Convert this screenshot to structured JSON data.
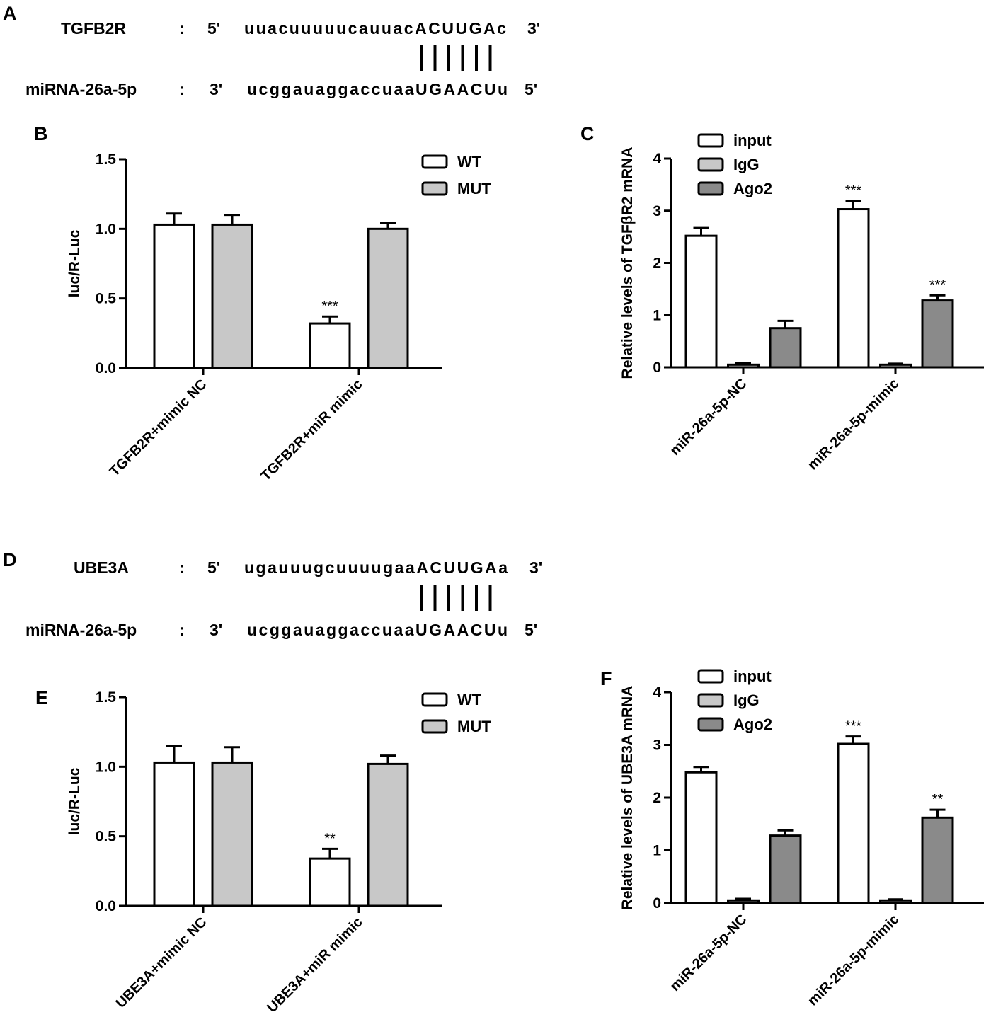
{
  "panels": {
    "A": {
      "label": "A",
      "target_name": "TGFB2R",
      "colon1": ":",
      "target_5": "5'",
      "target_seq": "uuacuuuuucauuacACUUGAc",
      "target_3": "3'",
      "mirna_name": "miRNA-26a-5p",
      "colon2": ":",
      "mirna_3": "3'",
      "mirna_seq": "ucggauaggaccuaaUGAACUu",
      "mirna_5": "5'",
      "pairs": 6
    },
    "D": {
      "label": "D",
      "target_name": "UBE3A",
      "colon1": ":",
      "target_5": "5'",
      "target_seq": "ugauuugcuuuugaaACUUGAa",
      "target_3": "3'",
      "mirna_name": "miRNA-26a-5p",
      "colon2": ":",
      "mirna_3": "3'",
      "mirna_seq": "ucggauaggaccuaaUGAACUu",
      "mirna_5": "5'",
      "pairs": 6
    }
  },
  "colors": {
    "white": "#ffffff",
    "light_gray": "#c8c8c8",
    "dark_gray": "#8a8a8a",
    "stroke": "#000000"
  },
  "chart_data": [
    {
      "panel": "B",
      "type": "bar",
      "ylabel": "luc/R-Luc",
      "ylim": [
        0,
        1.5
      ],
      "yticks": [
        "0.0",
        "0.5",
        "1.0",
        "1.5"
      ],
      "ytick_values": [
        0,
        0.5,
        1.0,
        1.5
      ],
      "categories": [
        "TGFB2R+mimic NC",
        "TGFB2R+miR mimic"
      ],
      "legend_position": "top-right",
      "series": [
        {
          "name": "WT",
          "color": "#ffffff",
          "values": [
            1.03,
            0.32
          ],
          "errors": [
            0.08,
            0.05
          ],
          "annotations": [
            "",
            "***"
          ]
        },
        {
          "name": "MUT",
          "color": "#c8c8c8",
          "values": [
            1.03,
            1.0
          ],
          "errors": [
            0.07,
            0.04
          ],
          "annotations": [
            "",
            ""
          ]
        }
      ]
    },
    {
      "panel": "C",
      "type": "bar",
      "ylabel": "Relative levels of TGFβR2 mRNA",
      "ylim": [
        0,
        4
      ],
      "yticks": [
        "0",
        "1",
        "2",
        "3",
        "4"
      ],
      "ytick_values": [
        0,
        1,
        2,
        3,
        4
      ],
      "categories": [
        "miR-26a-5p-NC",
        "miR-26a-5p-mimic"
      ],
      "legend_position": "top-left",
      "series": [
        {
          "name": "input",
          "color": "#ffffff",
          "values": [
            2.52,
            3.03
          ],
          "errors": [
            0.15,
            0.16
          ],
          "annotations": [
            "",
            "***"
          ]
        },
        {
          "name": "IgG",
          "color": "#c8c8c8",
          "values": [
            0.05,
            0.05
          ],
          "errors": [
            0.03,
            0.02
          ],
          "annotations": [
            "",
            ""
          ]
        },
        {
          "name": "Ago2",
          "color": "#8a8a8a",
          "values": [
            0.75,
            1.28
          ],
          "errors": [
            0.14,
            0.1
          ],
          "annotations": [
            "",
            "***"
          ]
        }
      ]
    },
    {
      "panel": "E",
      "type": "bar",
      "ylabel": "luc/R-Luc",
      "ylim": [
        0,
        1.5
      ],
      "yticks": [
        "0.0",
        "0.5",
        "1.0",
        "1.5"
      ],
      "ytick_values": [
        0,
        0.5,
        1.0,
        1.5
      ],
      "categories": [
        "UBE3A+mimic NC",
        "UBE3A+miR mimic"
      ],
      "legend_position": "top-right",
      "series": [
        {
          "name": "WT",
          "color": "#ffffff",
          "values": [
            1.03,
            0.34
          ],
          "errors": [
            0.12,
            0.07
          ],
          "annotations": [
            "",
            "**"
          ]
        },
        {
          "name": "MUT",
          "color": "#c8c8c8",
          "values": [
            1.03,
            1.02
          ],
          "errors": [
            0.11,
            0.06
          ],
          "annotations": [
            "",
            ""
          ]
        }
      ]
    },
    {
      "panel": "F",
      "type": "bar",
      "ylabel": "Relative levels of UBE3A mRNA",
      "ylim": [
        0,
        4
      ],
      "yticks": [
        "0",
        "1",
        "2",
        "3",
        "4"
      ],
      "ytick_values": [
        0,
        1,
        2,
        3,
        4
      ],
      "categories": [
        "miR-26a-5p-NC",
        "miR-26a-5p-mimic"
      ],
      "legend_position": "top-left",
      "series": [
        {
          "name": "input",
          "color": "#ffffff",
          "values": [
            2.48,
            3.02
          ],
          "errors": [
            0.1,
            0.14
          ],
          "annotations": [
            "",
            "***"
          ]
        },
        {
          "name": "IgG",
          "color": "#c8c8c8",
          "values": [
            0.05,
            0.05
          ],
          "errors": [
            0.03,
            0.02
          ],
          "annotations": [
            "",
            ""
          ]
        },
        {
          "name": "Ago2",
          "color": "#8a8a8a",
          "values": [
            1.28,
            1.62
          ],
          "errors": [
            0.1,
            0.15
          ],
          "annotations": [
            "",
            "**"
          ]
        }
      ]
    }
  ]
}
